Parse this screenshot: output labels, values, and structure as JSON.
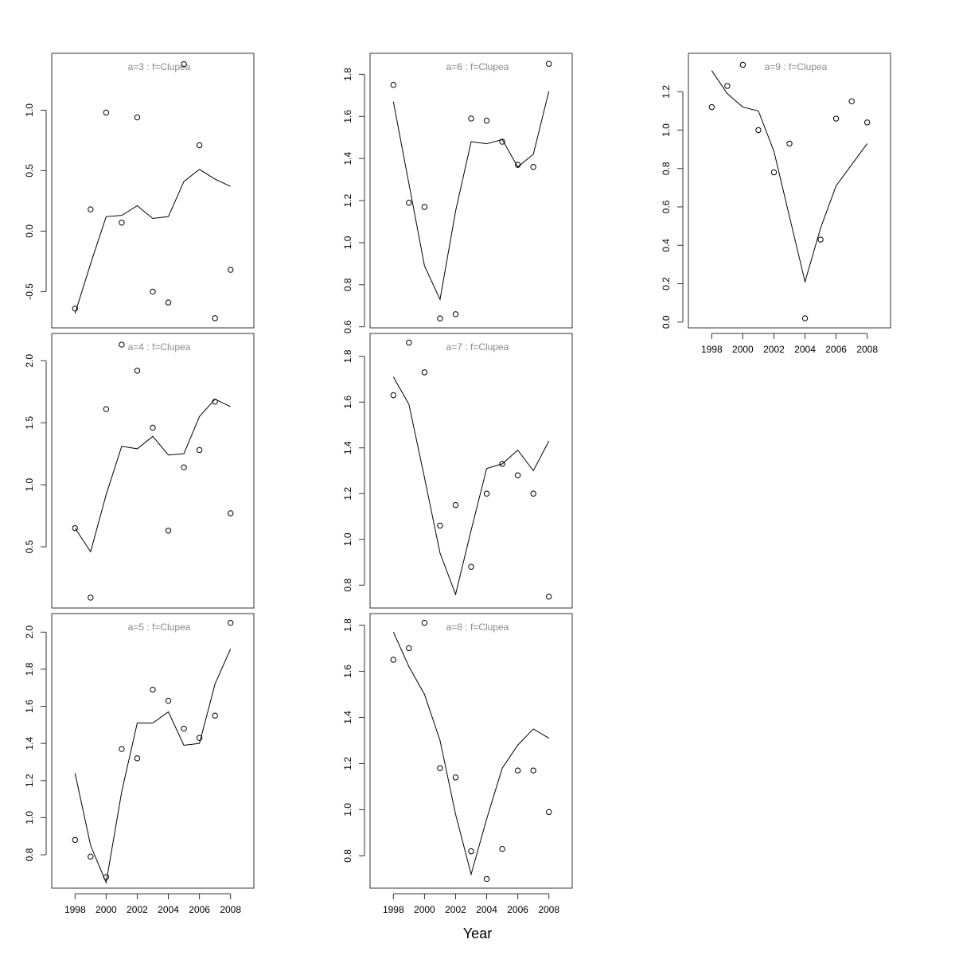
{
  "xlabel": "Year",
  "chart_data": [
    {
      "type": "line",
      "title": "a=3  :  f=Clupea",
      "x": [
        1998,
        1999,
        2000,
        2001,
        2002,
        2003,
        2004,
        2005,
        2006,
        2007,
        2008
      ],
      "points": [
        -0.64,
        0.18,
        0.98,
        0.07,
        0.94,
        -0.5,
        -0.59,
        1.38,
        0.71,
        -0.72,
        -0.32
      ],
      "fit": [
        -0.68,
        -0.27,
        0.12,
        0.13,
        0.21,
        0.105,
        0.12,
        0.41,
        0.51,
        0.43,
        0.37
      ],
      "yticks": [
        -0.5,
        0.0,
        0.5,
        1.0
      ],
      "ytick_labels": [
        "-0.5",
        "0.0",
        "0.5",
        "1.0"
      ],
      "ylim": [
        -0.8,
        1.47
      ],
      "xlim": [
        1996.5,
        2009.5
      ],
      "show_xaxis": false
    },
    {
      "type": "line",
      "title": "a=4  :  f=Clupea",
      "x": [
        1998,
        1999,
        2000,
        2001,
        2002,
        2003,
        2004,
        2005,
        2006,
        2007,
        2008
      ],
      "points": [
        0.65,
        0.09,
        1.61,
        2.13,
        1.92,
        1.46,
        0.63,
        1.14,
        1.28,
        1.67,
        0.77
      ],
      "fit": [
        0.65,
        0.46,
        0.92,
        1.31,
        1.29,
        1.39,
        1.24,
        1.25,
        1.55,
        1.69,
        1.63
      ],
      "yticks": [
        0.5,
        1.0,
        1.5,
        2.0
      ],
      "ytick_labels": [
        "0.5",
        "1.0",
        "1.5",
        "2.0"
      ],
      "ylim": [
        0.006,
        2.22
      ],
      "xlim": [
        1996.5,
        2009.5
      ],
      "show_xaxis": false
    },
    {
      "type": "line",
      "title": "a=5  :  f=Clupea",
      "x": [
        1998,
        1999,
        2000,
        2001,
        2002,
        2003,
        2004,
        2005,
        2006,
        2007,
        2008
      ],
      "points": [
        0.88,
        0.79,
        0.68,
        1.37,
        1.32,
        1.69,
        1.63,
        1.48,
        1.43,
        1.55,
        2.05
      ],
      "fit": [
        1.24,
        0.85,
        0.65,
        1.14,
        1.51,
        1.51,
        1.57,
        1.39,
        1.4,
        1.72,
        1.91
      ],
      "yticks": [
        0.8,
        1.0,
        1.2,
        1.4,
        1.6,
        1.8,
        2.0
      ],
      "ytick_labels": [
        "0.8",
        "1.0",
        "1.2",
        "1.4",
        "1.6",
        "1.8",
        "2.0"
      ],
      "ylim": [
        0.62,
        2.1
      ],
      "xlim": [
        1996.5,
        2009.5
      ],
      "show_xaxis": true
    },
    {
      "type": "line",
      "title": "a=6  :  f=Clupea",
      "x": [
        1998,
        1999,
        2000,
        2001,
        2002,
        2003,
        2004,
        2005,
        2006,
        2007,
        2008
      ],
      "points": [
        1.75,
        1.19,
        1.17,
        0.64,
        0.66,
        1.59,
        1.58,
        1.48,
        1.37,
        1.36,
        1.85
      ],
      "fit": [
        1.67,
        1.28,
        0.89,
        0.73,
        1.15,
        1.48,
        1.47,
        1.49,
        1.36,
        1.42,
        1.72
      ],
      "yticks": [
        0.6,
        0.8,
        1.0,
        1.2,
        1.4,
        1.6,
        1.8
      ],
      "ytick_labels": [
        "0.6",
        "0.8",
        "1.0",
        "1.2",
        "1.4",
        "1.6",
        "1.8"
      ],
      "ylim": [
        0.595,
        1.9
      ],
      "xlim": [
        1996.5,
        2009.5
      ],
      "show_xaxis": false
    },
    {
      "type": "line",
      "title": "a=7  :  f=Clupea",
      "x": [
        1998,
        1999,
        2000,
        2001,
        2002,
        2003,
        2004,
        2005,
        2006,
        2007,
        2008
      ],
      "points": [
        1.63,
        1.86,
        1.73,
        1.06,
        1.15,
        0.88,
        1.2,
        1.33,
        1.28,
        1.2,
        0.75
      ],
      "fit": [
        1.71,
        1.59,
        1.27,
        0.94,
        0.76,
        1.04,
        1.31,
        1.33,
        1.39,
        1.3,
        1.43
      ],
      "yticks": [
        0.8,
        1.0,
        1.2,
        1.4,
        1.6,
        1.8
      ],
      "ytick_labels": [
        "0.8",
        "1.0",
        "1.2",
        "1.4",
        "1.6",
        "1.8"
      ],
      "ylim": [
        0.7,
        1.9
      ],
      "xlim": [
        1996.5,
        2009.5
      ],
      "show_xaxis": false
    },
    {
      "type": "line",
      "title": "a=8  :  f=Clupea",
      "x": [
        1998,
        1999,
        2000,
        2001,
        2002,
        2003,
        2004,
        2005,
        2006,
        2007,
        2008
      ],
      "points": [
        1.65,
        1.7,
        1.81,
        1.18,
        1.14,
        0.82,
        0.7,
        0.83,
        1.17,
        1.17,
        0.99
      ],
      "fit": [
        1.77,
        1.62,
        1.5,
        1.3,
        0.98,
        0.72,
        0.96,
        1.18,
        1.28,
        1.35,
        1.31
      ],
      "yticks": [
        0.8,
        1.0,
        1.2,
        1.4,
        1.6,
        1.8
      ],
      "ytick_labels": [
        "0.8",
        "1.0",
        "1.2",
        "1.4",
        "1.6",
        "1.8"
      ],
      "ylim": [
        0.66,
        1.85
      ],
      "xlim": [
        1996.5,
        2009.5
      ],
      "show_xaxis": true
    },
    {
      "type": "line",
      "title": "a=9  :  f=Clupea",
      "x": [
        1998,
        1999,
        2000,
        2001,
        2002,
        2003,
        2004,
        2005,
        2006,
        2007,
        2008
      ],
      "points": [
        1.12,
        1.23,
        1.34,
        1.0,
        0.78,
        0.93,
        0.02,
        0.43,
        1.06,
        1.15,
        1.04
      ],
      "fit": [
        1.31,
        1.19,
        1.12,
        1.1,
        0.89,
        0.55,
        0.21,
        0.49,
        0.71,
        0.82,
        0.93
      ],
      "yticks": [
        0.0,
        0.2,
        0.4,
        0.6,
        0.8,
        1.0,
        1.2
      ],
      "ytick_labels": [
        "0.0",
        "0.2",
        "0.4",
        "0.6",
        "0.8",
        "1.0",
        "1.2"
      ],
      "ylim": [
        -0.03,
        1.4
      ],
      "xlim": [
        1996.5,
        2009.5
      ],
      "show_xaxis": true
    }
  ],
  "xticks": [
    1998,
    2000,
    2002,
    2004,
    2006,
    2008
  ],
  "xtick_labels": [
    "1998",
    "2000",
    "2002",
    "2004",
    "2006",
    "2008"
  ]
}
